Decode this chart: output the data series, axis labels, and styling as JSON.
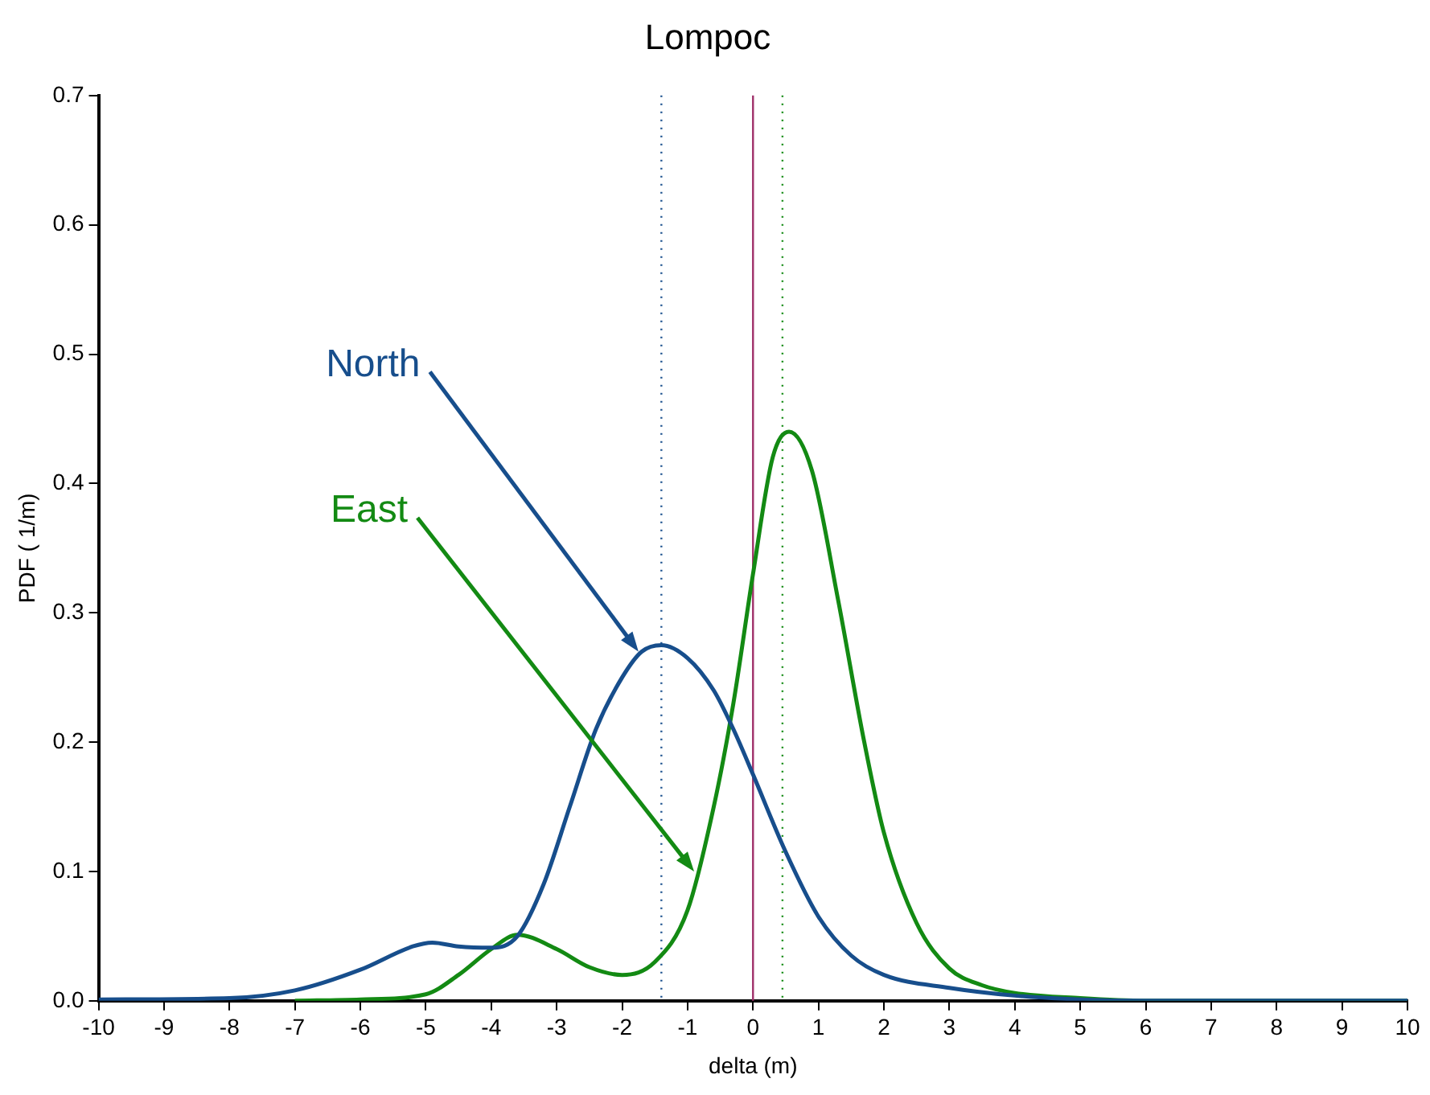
{
  "chart_data": {
    "type": "line",
    "title": "Lompoc",
    "xlabel": "delta (m)",
    "ylabel": "PDF ( 1/m)",
    "xlim": [
      -10,
      10
    ],
    "xticks": [
      -10,
      -9,
      -8,
      -7,
      -6,
      -5,
      -4,
      -3,
      -2,
      -1,
      0,
      1,
      2,
      3,
      4,
      5,
      6,
      7,
      8,
      9,
      10
    ],
    "ylim": [
      0,
      0.7
    ],
    "yticks": [
      {
        "value": 0,
        "label": "0.0"
      },
      0.1,
      0.2,
      0.3,
      0.4,
      0.5,
      0.6,
      0.7
    ],
    "grid": false,
    "legend": false,
    "marker": "none",
    "line_style": "solid",
    "series": [
      {
        "color": "#174e8c",
        "x": [
          -10,
          -8,
          -7,
          -6,
          -5.2,
          -4.9,
          -4.5,
          -4,
          -3.6,
          -3.2,
          -2.8,
          -2.4,
          -2,
          -1.7,
          -1.4,
          -1,
          -0.6,
          -0.3,
          0,
          0.5,
          1,
          1.5,
          2,
          3,
          4,
          5,
          6,
          10
        ],
        "values": [
          0.001,
          0.002,
          0.008,
          0.024,
          0.042,
          0.045,
          0.042,
          0.041,
          0.05,
          0.09,
          0.15,
          0.21,
          0.25,
          0.27,
          0.275,
          0.265,
          0.24,
          0.21,
          0.175,
          0.115,
          0.065,
          0.035,
          0.02,
          0.01,
          0.004,
          0.001,
          0,
          0
        ]
      },
      {
        "color": "#138a13",
        "x": [
          -7,
          -6,
          -5,
          -4.5,
          -4,
          -3.6,
          -3,
          -2.5,
          -2,
          -1.5,
          -1,
          -0.6,
          -0.3,
          0,
          0.3,
          0.55,
          0.9,
          1.3,
          1.7,
          2,
          2.5,
          3,
          3.5,
          4,
          5,
          6,
          10
        ],
        "values": [
          0,
          0.001,
          0.005,
          0.02,
          0.04,
          0.051,
          0.04,
          0.026,
          0.02,
          0.03,
          0.07,
          0.15,
          0.23,
          0.33,
          0.42,
          0.44,
          0.41,
          0.31,
          0.2,
          0.13,
          0.06,
          0.025,
          0.012,
          0.006,
          0.002,
          0,
          0
        ]
      }
    ],
    "ref_lines": [
      {
        "axis": "x",
        "value": -1.4,
        "color": "#174e8c",
        "line_style": "dotted"
      },
      {
        "axis": "x",
        "value": 0.45,
        "color": "#138a13",
        "line_style": "dotted"
      },
      {
        "axis": "x",
        "value": 0,
        "color": "#a0306a",
        "line_style": "solid"
      }
    ],
    "annotations": [
      {
        "text": "North",
        "x": -1.75,
        "y": 0.27
      },
      {
        "text": "East",
        "x": -0.9,
        "y": 0.1
      }
    ]
  }
}
